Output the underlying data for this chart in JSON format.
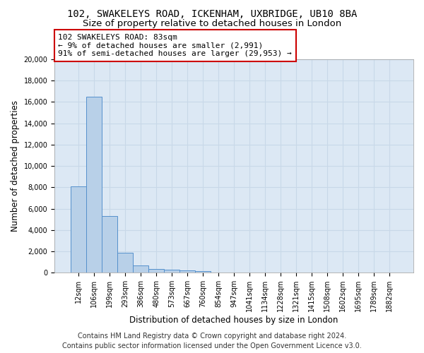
{
  "title_line1": "102, SWAKELEYS ROAD, ICKENHAM, UXBRIDGE, UB10 8BA",
  "title_line2": "Size of property relative to detached houses in London",
  "xlabel": "Distribution of detached houses by size in London",
  "ylabel": "Number of detached properties",
  "categories": [
    "12sqm",
    "106sqm",
    "199sqm",
    "293sqm",
    "386sqm",
    "480sqm",
    "573sqm",
    "667sqm",
    "760sqm",
    "854sqm",
    "947sqm",
    "1041sqm",
    "1134sqm",
    "1228sqm",
    "1321sqm",
    "1415sqm",
    "1508sqm",
    "1602sqm",
    "1695sqm",
    "1789sqm",
    "1882sqm"
  ],
  "values": [
    8100,
    16500,
    5300,
    1850,
    650,
    350,
    270,
    200,
    180,
    0,
    0,
    0,
    0,
    0,
    0,
    0,
    0,
    0,
    0,
    0,
    0
  ],
  "bar_color": "#b8d0e8",
  "bar_edge_color": "#5590cc",
  "ylim": [
    0,
    20000
  ],
  "yticks": [
    0,
    2000,
    4000,
    6000,
    8000,
    10000,
    12000,
    14000,
    16000,
    18000,
    20000
  ],
  "annotation_text": "102 SWAKELEYS ROAD: 83sqm\n← 9% of detached houses are smaller (2,991)\n91% of semi-detached houses are larger (29,953) →",
  "annotation_box_color": "#ffffff",
  "annotation_border_color": "#cc0000",
  "footer_line1": "Contains HM Land Registry data © Crown copyright and database right 2024.",
  "footer_line2": "Contains public sector information licensed under the Open Government Licence v3.0.",
  "background_color": "#dce8f4",
  "grid_color": "#c8d8e8",
  "title_fontsize": 10,
  "subtitle_fontsize": 9.5,
  "axis_label_fontsize": 8.5,
  "tick_fontsize": 7,
  "annot_fontsize": 8,
  "footer_fontsize": 7
}
